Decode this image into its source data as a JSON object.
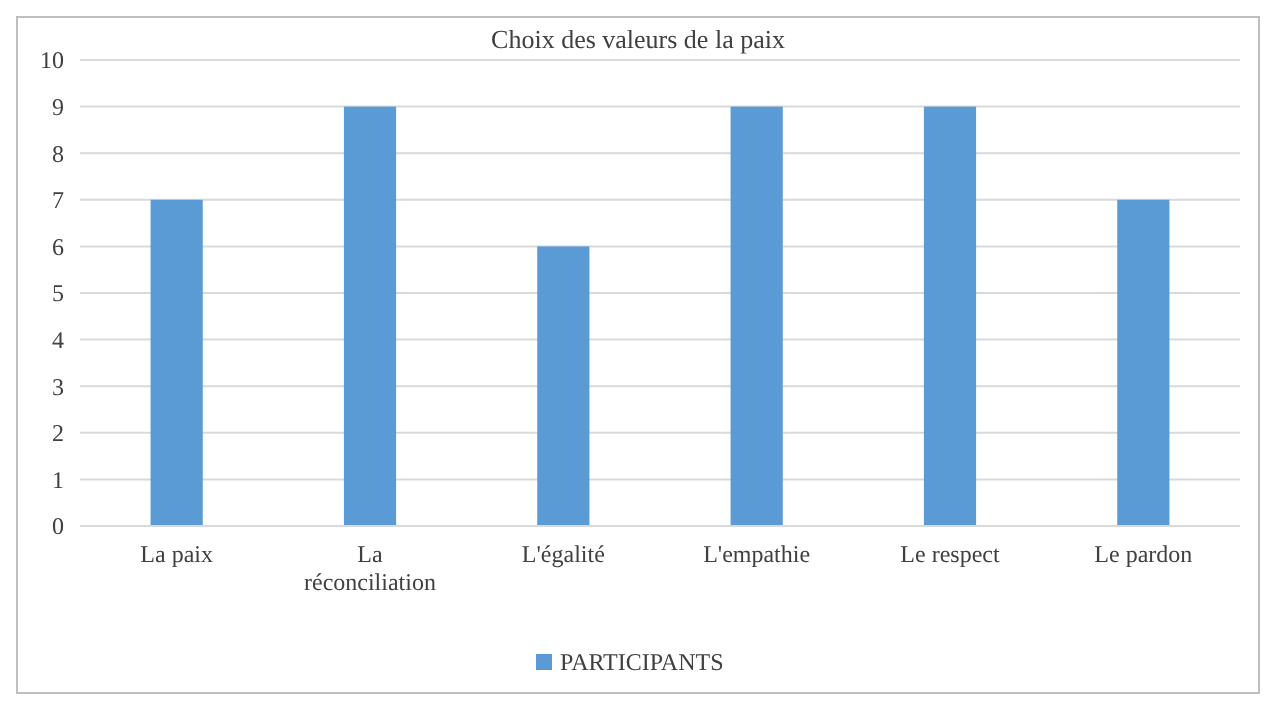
{
  "chart_data": {
    "type": "bar",
    "title": "Choix des valeurs de la paix",
    "categories": [
      "La paix",
      "La réconciliation",
      "L'égalité",
      "L'empathie",
      "Le respect",
      "Le pardon"
    ],
    "series": [
      {
        "name": "PARTICIPANTS",
        "color": "#5b9bd5",
        "values": [
          7,
          9,
          6,
          9,
          9,
          7
        ]
      }
    ],
    "ylim": [
      0,
      10
    ],
    "yticks": [
      0,
      1,
      2,
      3,
      4,
      5,
      6,
      7,
      8,
      9,
      10
    ],
    "grid": "y",
    "legend": "bottom"
  }
}
